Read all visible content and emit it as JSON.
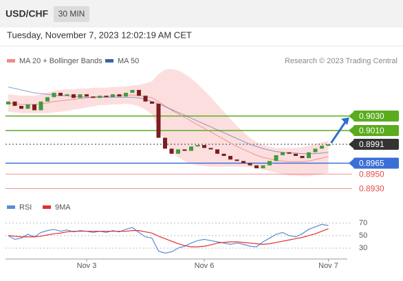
{
  "header": {
    "symbol": "USD/CHF",
    "interval": "30 MIN",
    "timestamp": "Tuesday, November 7, 2023 12:02:19 AM CET",
    "attribution": "Research © 2023 Trading Central"
  },
  "chart_data": [
    {
      "type": "candlestick",
      "categories": [
        null,
        null,
        null,
        null,
        null,
        null,
        null,
        null,
        null,
        null,
        null,
        null,
        "Nov 3",
        null,
        null,
        null,
        null,
        null,
        null,
        null,
        null,
        null,
        null,
        null,
        null,
        null,
        null,
        null,
        null,
        null,
        "Nov 6",
        null,
        null,
        null,
        null,
        null,
        null,
        null,
        null,
        null,
        null,
        null,
        null,
        null,
        null,
        null,
        null,
        null,
        null,
        "Nov 7"
      ],
      "open": [
        0.9046,
        0.905,
        0.9044,
        0.904,
        0.9046,
        0.9038,
        0.905,
        0.9056,
        0.9062,
        0.9058,
        0.906,
        0.9055,
        0.906,
        0.9057,
        0.9055,
        0.9058,
        0.9056,
        0.906,
        0.9057,
        0.9062,
        0.9066,
        0.9058,
        0.905,
        0.9047,
        0.9,
        0.8985,
        0.8978,
        0.8984,
        0.8982,
        0.8988,
        0.899,
        0.8986,
        0.8984,
        0.8978,
        0.8975,
        0.897,
        0.8968,
        0.8965,
        0.8962,
        0.8958,
        0.8962,
        0.8968,
        0.8976,
        0.898,
        0.8978,
        0.8975,
        0.8972,
        0.898,
        0.8985,
        0.8989
      ],
      "close": [
        0.905,
        0.9044,
        0.904,
        0.9046,
        0.9038,
        0.905,
        0.9056,
        0.9062,
        0.9058,
        0.906,
        0.9055,
        0.906,
        0.9057,
        0.9055,
        0.9058,
        0.9056,
        0.906,
        0.9057,
        0.9062,
        0.9066,
        0.9058,
        0.905,
        0.9047,
        0.9,
        0.8985,
        0.8978,
        0.8984,
        0.8982,
        0.8988,
        0.899,
        0.8986,
        0.8984,
        0.8978,
        0.8975,
        0.897,
        0.8968,
        0.8965,
        0.8962,
        0.8958,
        0.8962,
        0.8968,
        0.8976,
        0.898,
        0.8978,
        0.8975,
        0.8972,
        0.898,
        0.8985,
        0.8989,
        0.8991
      ],
      "up_color": "#3f9b3f",
      "down_color": "#7a1e1e",
      "series": [
        {
          "name": "MA 20 + Bollinger Bands",
          "color": "#f08a8a",
          "band_color": "#fcd6d6",
          "values": [
            0.9048,
            0.9047,
            0.9046,
            0.9046,
            0.9046,
            0.9047,
            0.9048,
            0.905,
            0.9051,
            0.9052,
            0.9053,
            0.9054,
            0.9055,
            0.9056,
            0.9057,
            0.9057,
            0.9058,
            0.9058,
            0.9059,
            0.9059,
            0.9058,
            0.9057,
            0.9055,
            0.905,
            0.9044,
            0.9038,
            0.9033,
            0.9028,
            0.9023,
            0.9018,
            0.9013,
            0.9008,
            0.9003,
            0.8998,
            0.8993,
            0.8988,
            0.8984,
            0.898,
            0.8976,
            0.8973,
            0.8971,
            0.8969,
            0.8968,
            0.8967,
            0.8967,
            0.8967,
            0.8968,
            0.897,
            0.8972,
            0.8974
          ],
          "upper": [
            0.906,
            0.9059,
            0.9058,
            0.9058,
            0.9058,
            0.906,
            0.9062,
            0.9065,
            0.9066,
            0.9067,
            0.9067,
            0.9068,
            0.9068,
            0.9069,
            0.9069,
            0.9069,
            0.907,
            0.907,
            0.9071,
            0.9072,
            0.9073,
            0.9075,
            0.9078,
            0.9088,
            0.9094,
            0.9095,
            0.9093,
            0.9088,
            0.9082,
            0.9074,
            0.9065,
            0.9056,
            0.9046,
            0.9036,
            0.9026,
            0.9016,
            0.9008,
            0.9,
            0.8994,
            0.899,
            0.8988,
            0.8986,
            0.8986,
            0.8986,
            0.8986,
            0.8987,
            0.8989,
            0.8991,
            0.8994,
            0.8996
          ],
          "lower": [
            0.9036,
            0.9035,
            0.9034,
            0.9034,
            0.9034,
            0.9034,
            0.9034,
            0.9035,
            0.9036,
            0.9037,
            0.9039,
            0.904,
            0.9042,
            0.9043,
            0.9045,
            0.9045,
            0.9046,
            0.9046,
            0.9047,
            0.9046,
            0.9043,
            0.9039,
            0.9032,
            0.9012,
            0.8994,
            0.8981,
            0.8973,
            0.8968,
            0.8964,
            0.8962,
            0.8961,
            0.896,
            0.896,
            0.896,
            0.896,
            0.896,
            0.896,
            0.896,
            0.8958,
            0.8956,
            0.8954,
            0.8952,
            0.895,
            0.8948,
            0.8948,
            0.8947,
            0.8947,
            0.8949,
            0.895,
            0.8952
          ]
        },
        {
          "name": "MA 50",
          "color": "#3a65a8",
          "values": [
            0.907,
            0.9068,
            0.9066,
            0.9064,
            0.9062,
            0.9061,
            0.906,
            0.9059,
            0.9058,
            0.9058,
            0.9057,
            0.9057,
            0.9056,
            0.9056,
            0.9056,
            0.9056,
            0.9056,
            0.9056,
            0.9056,
            0.9056,
            0.9055,
            0.9053,
            0.905,
            0.9047,
            0.9043,
            0.9039,
            0.9035,
            0.9031,
            0.9027,
            0.9023,
            0.9019,
            0.9015,
            0.9011,
            0.9007,
            0.9003,
            0.8999,
            0.8995,
            0.8991,
            0.8988,
            0.8985,
            0.8983,
            0.8981,
            0.898,
            0.8979,
            0.8979,
            0.8978,
            0.8978,
            0.8978,
            0.8979,
            0.898
          ]
        }
      ],
      "levels": [
        {
          "value": 0.903,
          "label": "0.9030",
          "color": "#5aab1e",
          "style": "box"
        },
        {
          "value": 0.901,
          "label": "0.9010",
          "color": "#5aab1e",
          "style": "box"
        },
        {
          "value": 0.8991,
          "label": "0.8991",
          "color": "#333333",
          "style": "dotted"
        },
        {
          "value": 0.8965,
          "label": "0.8965",
          "color": "#3a6fd8",
          "style": "box"
        },
        {
          "value": 0.895,
          "label": "0.8950",
          "color": "#e84a4a",
          "style": "text"
        },
        {
          "value": 0.893,
          "label": "0.8930",
          "color": "#e84a4a",
          "style": "text"
        }
      ],
      "arrow_color": "#2c6fcf",
      "ylim": [
        0.892,
        0.91
      ]
    },
    {
      "type": "line",
      "series": [
        {
          "name": "RSI",
          "color": "#5b8bd6",
          "values": [
            50,
            44,
            46,
            52,
            48,
            55,
            58,
            60,
            57,
            59,
            56,
            58,
            57,
            55,
            57,
            55,
            58,
            56,
            60,
            63,
            55,
            48,
            46,
            25,
            22,
            24,
            30,
            33,
            38,
            42,
            44,
            42,
            40,
            38,
            36,
            38,
            36,
            33,
            32,
            40,
            46,
            52,
            55,
            50,
            48,
            53,
            60,
            64,
            68,
            66
          ]
        },
        {
          "name": "9MA",
          "color": "#e03030",
          "values": [
            50,
            49,
            48,
            48,
            48,
            49,
            51,
            53,
            54,
            56,
            57,
            57,
            57,
            57,
            57,
            57,
            57,
            57,
            57,
            58,
            58,
            56,
            54,
            49,
            45,
            41,
            37,
            34,
            32,
            32,
            33,
            35,
            38,
            39,
            40,
            40,
            39,
            38,
            37,
            36,
            37,
            39,
            41,
            43,
            45,
            47,
            50,
            53,
            57,
            61
          ]
        }
      ],
      "ylim": [
        18,
        84
      ],
      "yticks": [
        70,
        50,
        30
      ]
    }
  ]
}
